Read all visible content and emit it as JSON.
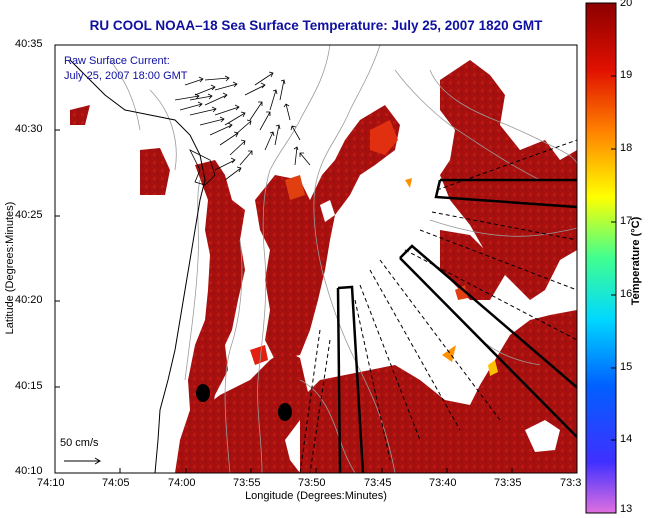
{
  "title": "RU COOL  NOAA–18  Sea Surface Temperature:  July 25, 2007 1820 GMT",
  "axes": {
    "xlabel": "Longitude (Degrees:Minutes)",
    "ylabel": "Latitude (Degrees:Minutes)",
    "x_ticks": [
      "74:10",
      "74:05",
      "74:00",
      "73:55",
      "73:50",
      "73:45",
      "73:40",
      "73:35",
      "73:3"
    ],
    "y_ticks": [
      "40:35",
      "40:30",
      "40:25",
      "40:20",
      "40:15",
      "40:10"
    ]
  },
  "colorbar": {
    "label": "Temperature (°C)",
    "ticks": [
      "20",
      "19",
      "18",
      "17",
      "16",
      "15",
      "14",
      "13"
    ],
    "range": [
      13,
      20
    ],
    "colors": [
      "#e070e0",
      "#0040ff",
      "#00c8ff",
      "#40ff80",
      "#ffff00",
      "#ff7000",
      "#e01000",
      "#8b0000"
    ]
  },
  "annotations": {
    "current_label_1": "Raw Surface Current:",
    "current_label_2": "July 25, 2007 18:00 GMT"
  },
  "scale": {
    "label": "50 cm/s"
  },
  "map": {
    "land_color": "#ffffff",
    "sst_color_dominant": "#a81010"
  }
}
